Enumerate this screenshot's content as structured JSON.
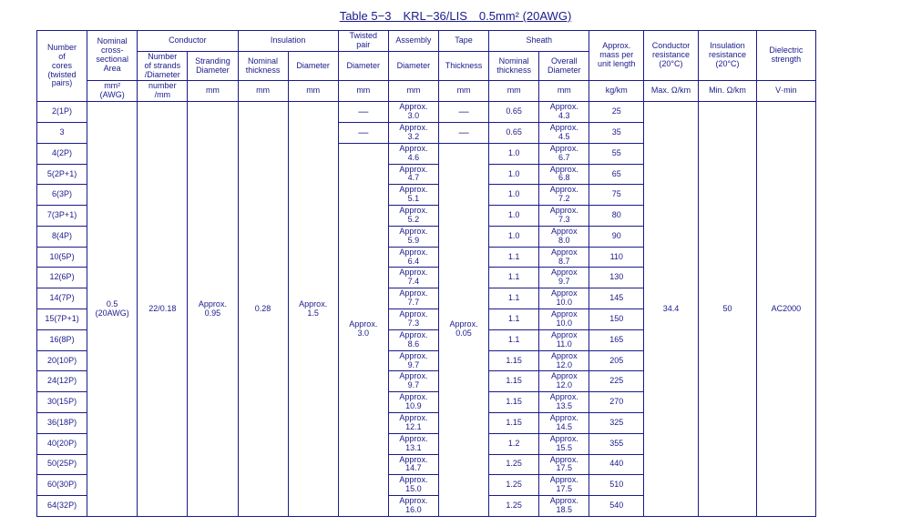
{
  "title": "Table 5−3 KRL−36/LIS 0.5mm² (20AWG)",
  "headers": {
    "cores": "Number\nof\ncores\n(twisted\npairs)",
    "area": "Nominal\ncross-\nsectional\nArea",
    "area_unit": "mm²\n(AWG)",
    "conductor": "Conductor",
    "strands": "Number\nof strands\n/Diameter",
    "strands_unit": "number\n/mm",
    "strand_dia": "Stranding\nDiameter",
    "mm": "mm",
    "insulation": "Insulation",
    "nom_thick": "Nominal\nthickness",
    "diameter": "Diameter",
    "twisted": "Twisted\npair",
    "assembly": "Assembly",
    "tape": "Tape",
    "thickness": "Thickness",
    "sheath": "Sheath",
    "overall": "Overall\nDiameter",
    "mass": "Approx.\nmass per\nunit length",
    "mass_unit": "kg/km",
    "cond_res": "Conductor\nresistance\n(20°C)",
    "cond_res_unit": "Max. Ω/km",
    "ins_res": "Insulation\nresistance\n(20°C)",
    "ins_res_unit": "Min. Ω/km",
    "dielec": "Dielectric\nstrength",
    "dielec_unit": "V·min"
  },
  "shared": {
    "area": "0.5\n(20AWG)",
    "strands": "22/0.18",
    "strand_dia": "Approx.\n0.95",
    "ins_thick": "0.28",
    "ins_dia": "Approx.\n1.5",
    "twist_dia": "Approx.\n3.0",
    "tape_thick": "Approx.\n0.05",
    "cond_res": "34.4",
    "ins_res": "50",
    "dielec": "AC2000"
  },
  "rows": [
    {
      "c": "2(1P)",
      "tw": "—",
      "asm": "Approx.\n3.0",
      "tp": "—",
      "st": "0.65",
      "od": "Approx.\n4.3",
      "m": "25"
    },
    {
      "c": "3",
      "tw": "—",
      "asm": "Approx.\n3.2",
      "tp": "—",
      "st": "0.65",
      "od": "Approx.\n4.5",
      "m": "35"
    },
    {
      "c": "4(2P)",
      "asm": "Approx.\n4.6",
      "st": "1.0",
      "od": "Approx.\n6.7",
      "m": "55"
    },
    {
      "c": "5(2P+1)",
      "asm": "Approx.\n4.7",
      "st": "1.0",
      "od": "Approx.\n6.8",
      "m": "65"
    },
    {
      "c": "6(3P)",
      "asm": "Approx.\n5.1",
      "st": "1.0",
      "od": "Approx.\n7.2",
      "m": "75"
    },
    {
      "c": "7(3P+1)",
      "asm": "Approx.\n5.2",
      "st": "1.0",
      "od": "Approx.\n7.3",
      "m": "80"
    },
    {
      "c": "8(4P)",
      "asm": "Approx.\n5.9",
      "st": "1.0",
      "od": "Approx\n8.0",
      "m": "90"
    },
    {
      "c": "10(5P)",
      "asm": "Approx.\n6.4",
      "st": "1.1",
      "od": "Approx\n8.7",
      "m": "110"
    },
    {
      "c": "12(6P)",
      "asm": "Approx.\n7.4",
      "st": "1.1",
      "od": "Approx\n9.7",
      "m": "130"
    },
    {
      "c": "14(7P)",
      "asm": "Approx.\n7.7",
      "st": "1.1",
      "od": "Approx\n10.0",
      "m": "145"
    },
    {
      "c": "15(7P+1)",
      "asm": "Approx.\n7.3",
      "st": "1.1",
      "od": "Approx\n10.0",
      "m": "150"
    },
    {
      "c": "16(8P)",
      "asm": "Approx.\n8.6",
      "st": "1.1",
      "od": "Approx\n11.0",
      "m": "165"
    },
    {
      "c": "20(10P)",
      "asm": "Approx.\n9.7",
      "st": "1.15",
      "od": "Approx\n12.0",
      "m": "205"
    },
    {
      "c": "24(12P)",
      "asm": "Approx.\n9.7",
      "st": "1.15",
      "od": "Approx\n12.0",
      "m": "225"
    },
    {
      "c": "30(15P)",
      "asm": "Approx.\n10.9",
      "st": "1.15",
      "od": "Approx.\n13.5",
      "m": "270"
    },
    {
      "c": "36(18P)",
      "asm": "Approx.\n12.1",
      "st": "1.15",
      "od": "Approx.\n14.5",
      "m": "325"
    },
    {
      "c": "40(20P)",
      "asm": "Approx.\n13.1",
      "st": "1.2",
      "od": "Approx.\n15.5",
      "m": "355"
    },
    {
      "c": "50(25P)",
      "asm": "Approx.\n14.7",
      "st": "1.25",
      "od": "Approx.\n17.5",
      "m": "440"
    },
    {
      "c": "60(30P)",
      "asm": "Approx.\n15.0",
      "st": "1.25",
      "od": "Approx.\n17.5",
      "m": "510"
    },
    {
      "c": "64(32P)",
      "asm": "Approx.\n16.0",
      "st": "1.25",
      "od": "Approx.\n18.5",
      "m": "540"
    }
  ],
  "layout": {
    "col_widths": [
      "6%",
      "6%",
      "6%",
      "6%",
      "6%",
      "6%",
      "6%",
      "6%",
      "6%",
      "6%",
      "6%",
      "6.5%",
      "6.5%",
      "7%",
      "7%",
      "7%"
    ]
  }
}
